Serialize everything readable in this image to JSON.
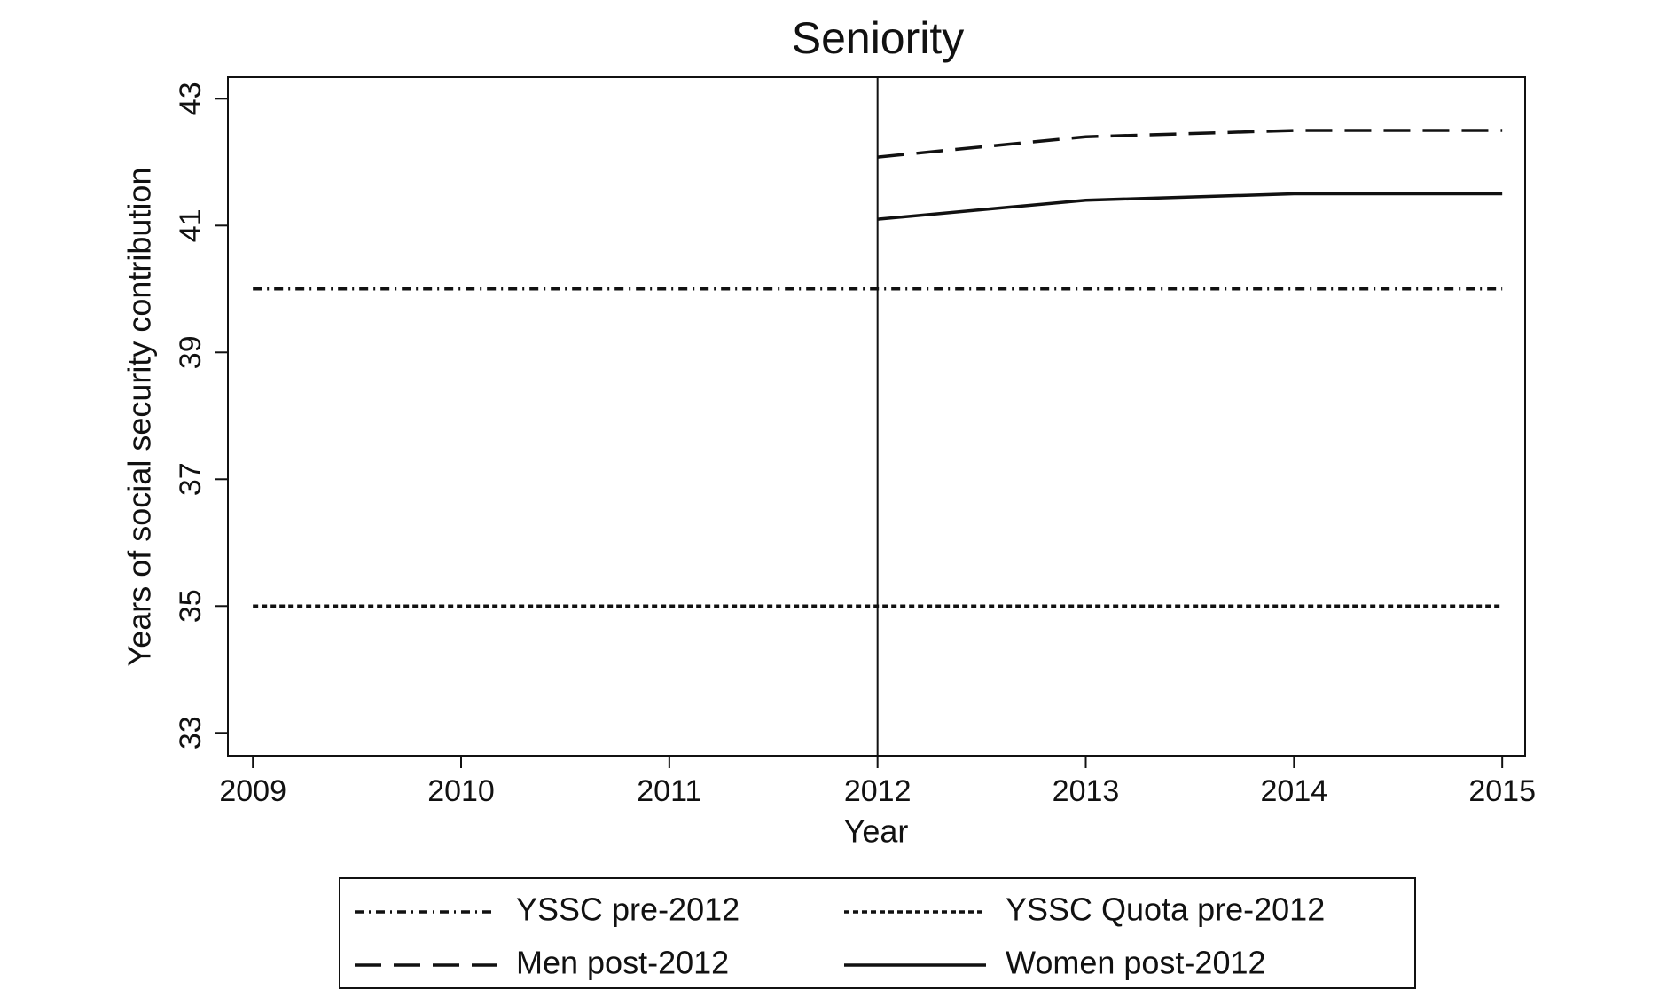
{
  "chart_data": {
    "type": "line",
    "title": "Seniority",
    "x_label": "Year",
    "y_label": "Years of social security contribution",
    "x": [
      2009,
      2010,
      2011,
      2012,
      2013,
      2014,
      2015
    ],
    "series": [
      {
        "name": "YSSC pre-2012",
        "color": "#111111",
        "style": "dashdot",
        "values": [
          40,
          40,
          40,
          40,
          40,
          40,
          40
        ]
      },
      {
        "name": "YSSC Quota pre-2012",
        "color": "#111111",
        "style": "dotted",
        "values": [
          35,
          35,
          35,
          35,
          35,
          35,
          35
        ]
      },
      {
        "name": "Men post-2012",
        "color": "#111111",
        "style": "longdash",
        "values": [
          null,
          null,
          null,
          42.08,
          42.4,
          42.5,
          42.5
        ]
      },
      {
        "name": "Women post-2012",
        "color": "#111111",
        "style": "solid",
        "values": [
          null,
          null,
          null,
          41.1,
          41.4,
          41.5,
          41.5
        ]
      }
    ],
    "vline": 2012,
    "xlim": [
      2008.88,
      2015.11
    ],
    "xticks": [
      2009,
      2010,
      2011,
      2012,
      2013,
      2014,
      2015
    ],
    "ylim": [
      32.64,
      43.34
    ],
    "yticks": [
      33,
      35,
      37,
      39,
      41,
      43
    ],
    "legend": "bottom"
  }
}
